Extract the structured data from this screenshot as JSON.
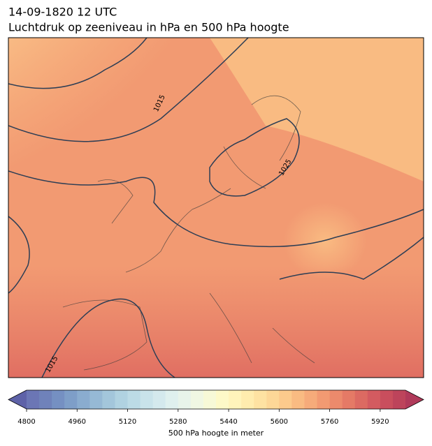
{
  "header": {
    "title": "14-09-1820 12 UTC",
    "subtitle": "Luchtdruk op zeeniveau in hPa en 500 hPa hoogte"
  },
  "contour_labels": [
    "1015",
    "1025",
    "1015"
  ],
  "colorbar": {
    "range": [
      4800,
      6000
    ],
    "ticks": [
      4800,
      4960,
      5120,
      5280,
      5440,
      5600,
      5760,
      5920
    ],
    "label": "500 hPa hoogte in meter",
    "colors": [
      "#6b76b5",
      "#6f82ba",
      "#7590c2",
      "#7e9ec8",
      "#8aaccf",
      "#96b9d5",
      "#a3c6db",
      "#b0d2e1",
      "#bcdbe6",
      "#c9e3ea",
      "#d4e9ed",
      "#dff0ee",
      "#e8f4ea",
      "#f0f7e3",
      "#f7f9d7",
      "#fdf9c8",
      "#fff4bb",
      "#ffecae",
      "#fee2a2",
      "#fdd797",
      "#fcca8c",
      "#f9bb82",
      "#f6ab7a",
      "#f29a72",
      "#ec8a6c",
      "#e57a66",
      "#dc6a62",
      "#d35b60",
      "#c94e5d",
      "#bd445b"
    ],
    "extend_colors": [
      "#5e62a8",
      "#b03a5a"
    ]
  }
}
